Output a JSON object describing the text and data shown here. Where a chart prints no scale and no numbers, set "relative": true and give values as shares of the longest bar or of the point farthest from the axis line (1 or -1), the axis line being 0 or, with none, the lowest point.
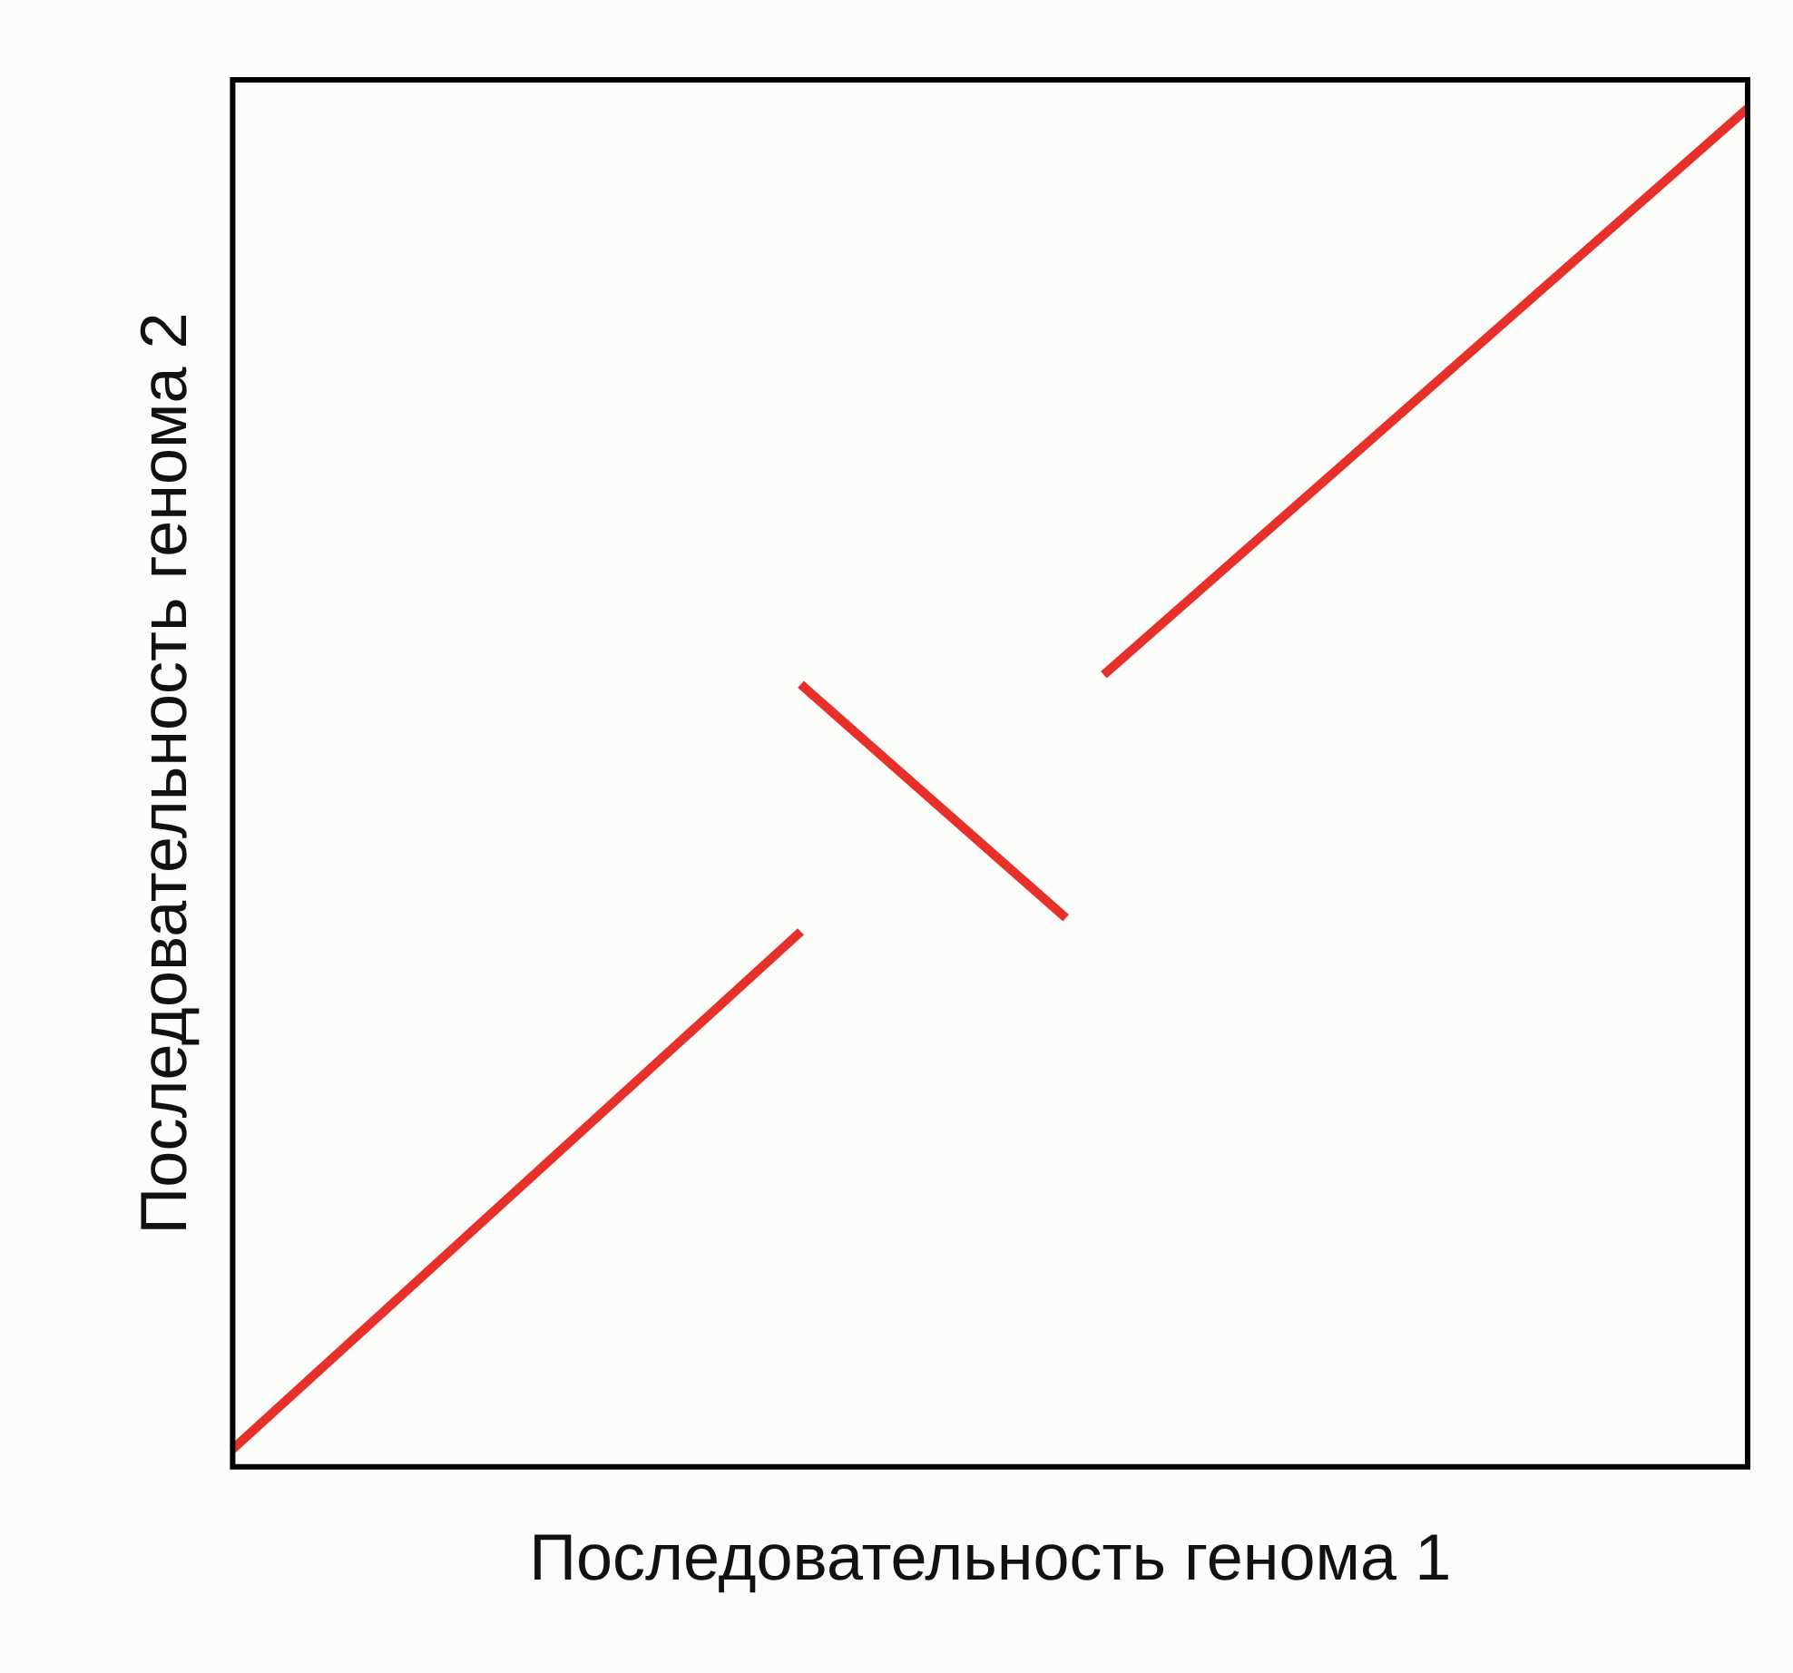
{
  "chart_data": {
    "type": "line",
    "xlabel": "Последовательность генома 1",
    "ylabel": "Последовательность генома 2",
    "relative": true,
    "legend": false,
    "marker": "none",
    "line_style": "solid",
    "categories": [
      null,
      null,
      null,
      null,
      null,
      null,
      null,
      null,
      null,
      null,
      null,
      null,
      null,
      null,
      null,
      null,
      null,
      null,
      null,
      null,
      null,
      null,
      null,
      null,
      null,
      null,
      null,
      null,
      null,
      null,
      null,
      null,
      null,
      null,
      null,
      null,
      null,
      null,
      null,
      null,
      null
    ],
    "series": [
      {
        "color": "#e8302a",
        "values": [
          0.013,
          null,
          null,
          null,
          null,
          null,
          null,
          null,
          null,
          null,
          null,
          null,
          null,
          null,
          null,
          0.394,
          null,
          null,
          null,
          null,
          null,
          null,
          null,
          null,
          null,
          null,
          null,
          null,
          null,
          null,
          null,
          null,
          null,
          null,
          null,
          null,
          null,
          null,
          null,
          null,
          null
        ]
      },
      {
        "color": "#e8302a",
        "values": [
          null,
          null,
          null,
          null,
          null,
          null,
          null,
          null,
          null,
          null,
          null,
          null,
          null,
          null,
          null,
          0.576,
          null,
          null,
          null,
          null,
          null,
          null,
          0.404,
          null,
          null,
          null,
          null,
          null,
          null,
          null,
          null,
          null,
          null,
          null,
          null,
          null,
          null,
          null,
          null,
          null,
          null
        ]
      },
      {
        "color": "#e8302a",
        "values": [
          null,
          null,
          null,
          null,
          null,
          null,
          null,
          null,
          null,
          null,
          null,
          null,
          null,
          null,
          null,
          null,
          null,
          null,
          null,
          null,
          null,
          null,
          null,
          0.583,
          null,
          null,
          null,
          null,
          null,
          null,
          null,
          null,
          null,
          null,
          null,
          null,
          null,
          null,
          null,
          null,
          1
        ]
      }
    ]
  }
}
